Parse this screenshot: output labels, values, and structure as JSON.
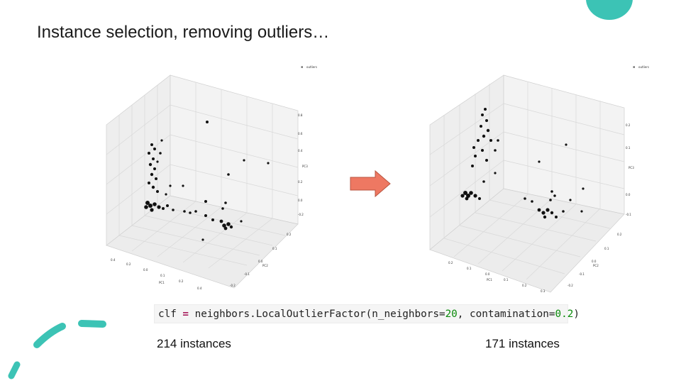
{
  "slide": {
    "title": "Instance selection, removing outliers…",
    "accent_color": "#3cc3b5",
    "arrow_color": "#ee7862"
  },
  "code": {
    "prefix": "clf",
    "op": " = ",
    "call": "neighbors.LocalOutlierFactor(n_neighbors=",
    "n_neighbors": "20",
    "mid": ", contamination=",
    "contamination": "0.2",
    "suffix": ")"
  },
  "plots": {
    "left": {
      "legend": "outliers",
      "x_ticks": [
        "0.4",
        "0.2",
        "0.0",
        "0.1",
        "0.2",
        "0.4"
      ],
      "x_label": "PC1",
      "y_ticks": [
        "0.2",
        "0.1",
        "0.0",
        "-0.1",
        "-0.2"
      ],
      "y_label": "PC2",
      "z_ticks": [
        "0.8",
        "0.6",
        "0.4",
        "0.2",
        "0.0",
        "-0.2"
      ],
      "z_label": "PC3"
    },
    "right": {
      "legend": "outliers",
      "x_ticks": [
        "0.2",
        "0.1",
        "0.0",
        "0.1",
        "0.2",
        "0.3"
      ],
      "x_label": "PC1",
      "y_ticks": [
        "0.2",
        "0.1",
        "0.0",
        "-0.1",
        "-0.2"
      ],
      "y_label": "PC2",
      "z_ticks": [
        "0.2",
        "0.1",
        "0.0",
        "-0.1"
      ],
      "z_label": "PC3"
    }
  },
  "counts": {
    "left": "214 instances",
    "right": "171 instances"
  }
}
